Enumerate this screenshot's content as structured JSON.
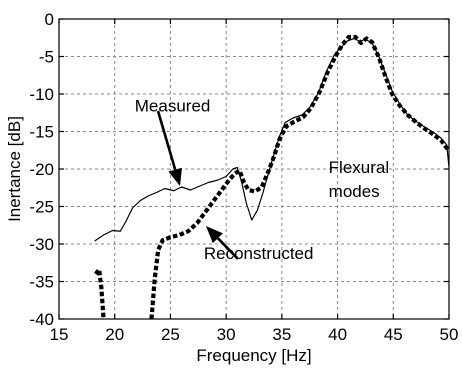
{
  "chart_data": {
    "type": "line",
    "xlabel": "Frequency [Hz]",
    "ylabel": "Inertance [dB]",
    "xlim": [
      15,
      50
    ],
    "ylim": [
      -40,
      0
    ],
    "x_ticks": [
      15,
      20,
      25,
      30,
      35,
      40,
      45,
      50
    ],
    "y_ticks": [
      0,
      -5,
      -10,
      -15,
      -20,
      -25,
      -30,
      -35,
      -40
    ],
    "grid": true,
    "series": [
      {
        "name": "Measured",
        "style": "solid",
        "color": "#000000",
        "points": [
          [
            18.2,
            -29.6
          ],
          [
            19.0,
            -28.8
          ],
          [
            19.8,
            -28.2
          ],
          [
            20.5,
            -28.3
          ],
          [
            21.0,
            -27.0
          ],
          [
            21.6,
            -25.2
          ],
          [
            22.3,
            -24.2
          ],
          [
            23.0,
            -23.6
          ],
          [
            23.8,
            -23.1
          ],
          [
            24.5,
            -22.6
          ],
          [
            25.3,
            -22.9
          ],
          [
            26.0,
            -22.4
          ],
          [
            26.8,
            -22.8
          ],
          [
            27.6,
            -22.3
          ],
          [
            28.4,
            -21.8
          ],
          [
            29.2,
            -21.5
          ],
          [
            30.0,
            -21.0
          ],
          [
            30.6,
            -20.0
          ],
          [
            31.0,
            -19.8
          ],
          [
            31.4,
            -21.8
          ],
          [
            31.8,
            -24.5
          ],
          [
            32.3,
            -26.8
          ],
          [
            32.8,
            -25.5
          ],
          [
            33.3,
            -23.2
          ],
          [
            33.8,
            -20.5
          ],
          [
            34.3,
            -18.0
          ],
          [
            34.8,
            -15.6
          ],
          [
            35.3,
            -13.8
          ],
          [
            36.0,
            -13.2
          ],
          [
            36.8,
            -12.8
          ],
          [
            37.5,
            -11.8
          ],
          [
            38.3,
            -9.8
          ],
          [
            39.0,
            -7.0
          ],
          [
            39.7,
            -4.8
          ],
          [
            40.3,
            -3.8
          ],
          [
            40.9,
            -2.9
          ],
          [
            41.5,
            -2.6
          ],
          [
            42.0,
            -3.0
          ],
          [
            42.5,
            -2.7
          ],
          [
            43.1,
            -3.2
          ],
          [
            43.7,
            -5.0
          ],
          [
            44.3,
            -7.3
          ],
          [
            44.9,
            -9.6
          ],
          [
            45.6,
            -11.4
          ],
          [
            46.3,
            -12.8
          ],
          [
            47.0,
            -13.6
          ],
          [
            47.8,
            -14.4
          ],
          [
            48.6,
            -15.1
          ],
          [
            49.3,
            -15.9
          ],
          [
            49.8,
            -16.8
          ],
          [
            50.0,
            -19.8
          ]
        ]
      },
      {
        "name": "Reconstructed",
        "style": "dotted",
        "color": "#000000",
        "segments": [
          [
            [
              18.3,
              -34.0
            ],
            [
              18.6,
              -33.4
            ],
            [
              18.8,
              -35.8
            ],
            [
              19.0,
              -40.0
            ]
          ],
          [
            [
              23.3,
              -40.0
            ],
            [
              23.6,
              -34.5
            ],
            [
              23.9,
              -30.8
            ],
            [
              24.3,
              -29.5
            ],
            [
              25.0,
              -29.1
            ],
            [
              25.8,
              -28.8
            ],
            [
              26.6,
              -28.3
            ],
            [
              27.4,
              -27.2
            ],
            [
              28.2,
              -25.6
            ],
            [
              29.0,
              -24.0
            ],
            [
              29.7,
              -22.6
            ],
            [
              30.3,
              -21.4
            ],
            [
              30.8,
              -20.6
            ],
            [
              31.2,
              -20.2
            ],
            [
              31.6,
              -21.8
            ],
            [
              32.0,
              -22.8
            ],
            [
              32.6,
              -23.0
            ],
            [
              33.2,
              -22.4
            ],
            [
              33.8,
              -20.3
            ],
            [
              34.3,
              -18.3
            ],
            [
              34.8,
              -16.0
            ],
            [
              35.4,
              -14.3
            ],
            [
              36.1,
              -13.7
            ],
            [
              36.9,
              -13.1
            ],
            [
              37.6,
              -11.9
            ],
            [
              38.4,
              -9.7
            ],
            [
              39.1,
              -7.1
            ],
            [
              39.8,
              -5.0
            ],
            [
              40.4,
              -3.5
            ],
            [
              41.0,
              -2.4
            ],
            [
              41.6,
              -2.4
            ],
            [
              42.1,
              -3.2
            ],
            [
              42.6,
              -2.6
            ],
            [
              43.1,
              -3.1
            ],
            [
              43.7,
              -5.1
            ],
            [
              44.3,
              -7.7
            ],
            [
              44.9,
              -10.0
            ],
            [
              45.6,
              -11.6
            ],
            [
              46.3,
              -12.8
            ],
            [
              47.0,
              -13.7
            ],
            [
              47.8,
              -14.6
            ],
            [
              48.6,
              -15.4
            ],
            [
              49.3,
              -16.2
            ],
            [
              50.0,
              -17.6
            ]
          ]
        ]
      }
    ],
    "annotations": [
      {
        "text": "Measured",
        "x": 21.8,
        "y": -12.3,
        "arrow_to": [
          26.2,
          -22.5
        ]
      },
      {
        "text": "Reconstructed",
        "x": 28.0,
        "y": -32.0,
        "arrow_to": [
          27.4,
          -27.1
        ]
      },
      {
        "text_lines": [
          "Flexural",
          "modes"
        ],
        "x": 39.2,
        "y": -20.5
      }
    ]
  }
}
